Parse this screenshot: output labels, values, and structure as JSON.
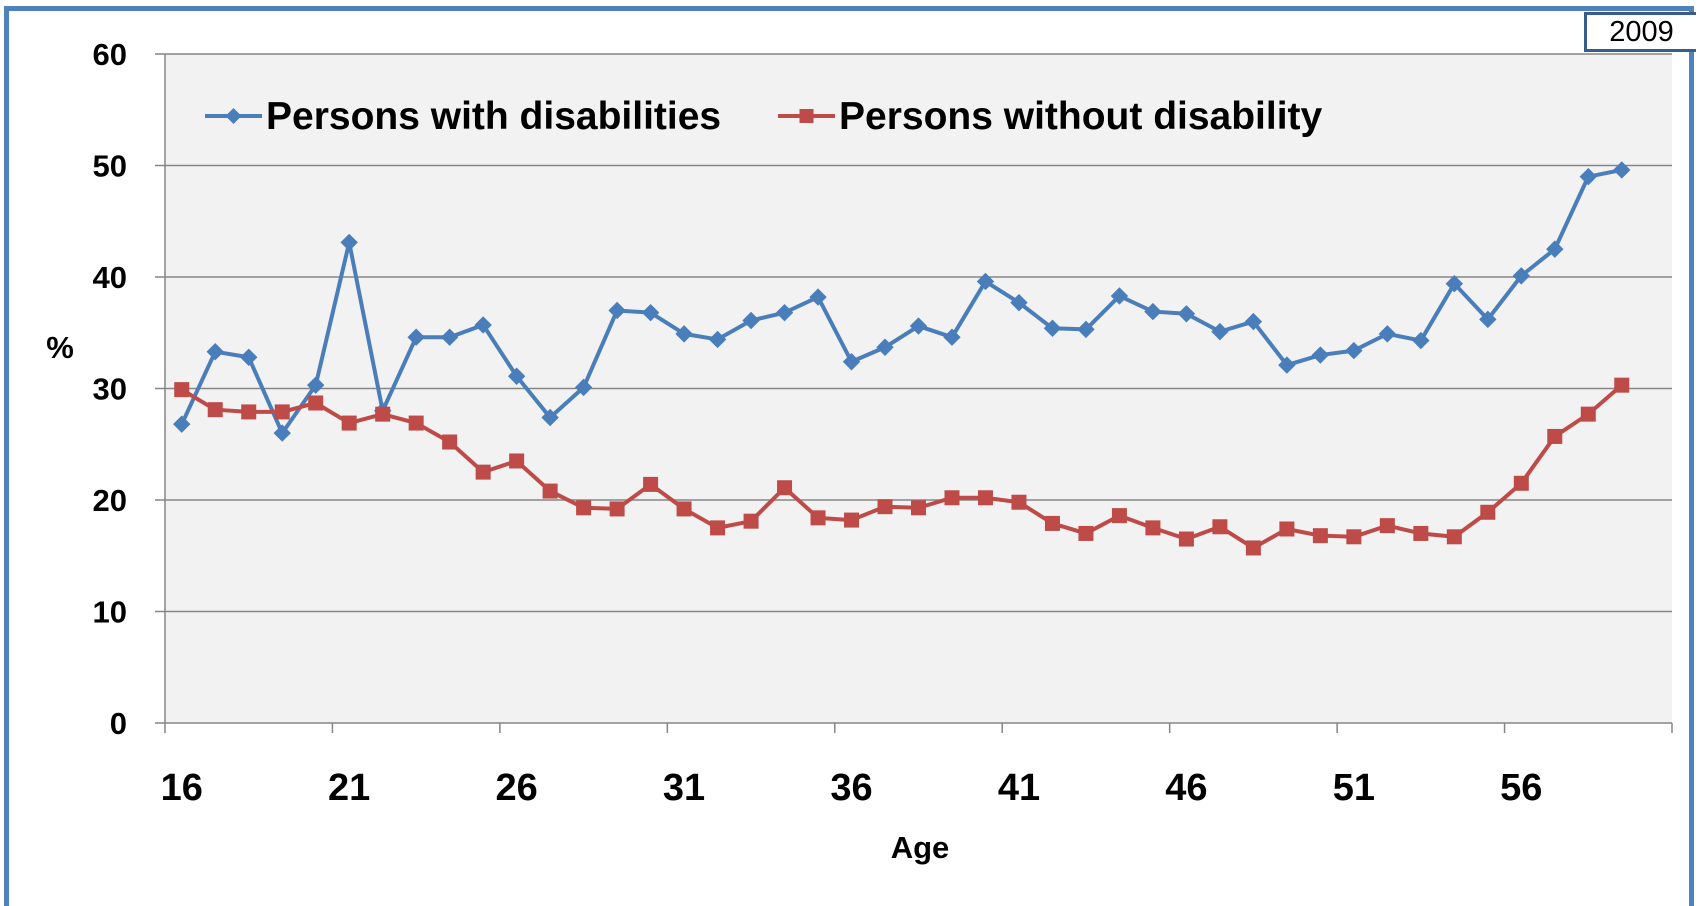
{
  "badge": {
    "year": "2009"
  },
  "chart_data": {
    "type": "line",
    "xlabel": "Age",
    "ylabel": "%",
    "ylim": [
      0,
      60
    ],
    "yticks": [
      0,
      10,
      20,
      30,
      40,
      50,
      60
    ],
    "xticks": [
      16,
      21,
      26,
      31,
      36,
      41,
      46,
      51,
      56
    ],
    "grid": "horizontal",
    "legend_position": "top-left",
    "x": [
      16,
      17,
      18,
      19,
      20,
      21,
      22,
      23,
      24,
      25,
      26,
      27,
      28,
      29,
      30,
      31,
      32,
      33,
      34,
      35,
      36,
      37,
      38,
      39,
      40,
      41,
      42,
      43,
      44,
      45,
      46,
      47,
      48,
      49,
      50,
      51,
      52,
      53,
      54,
      55,
      56,
      57,
      58,
      59,
      60
    ],
    "series": [
      {
        "name": "Persons with disabilities",
        "color": "#4a7ebb",
        "marker": "diamond",
        "values": [
          26.8,
          33.3,
          32.8,
          26.0,
          30.3,
          43.1,
          28.0,
          34.6,
          34.6,
          35.7,
          31.1,
          27.4,
          30.1,
          37.0,
          36.8,
          34.9,
          34.4,
          36.1,
          36.8,
          38.2,
          32.4,
          33.7,
          35.6,
          34.6,
          39.6,
          37.7,
          35.4,
          35.3,
          38.3,
          36.9,
          36.7,
          35.1,
          36.0,
          32.1,
          33.0,
          33.4,
          34.9,
          34.3,
          39.4,
          36.2,
          40.1,
          42.5,
          49.0,
          49.6,
          null
        ]
      },
      {
        "name": "Persons without disability",
        "color": "#be4b48",
        "marker": "square",
        "values": [
          29.9,
          28.1,
          27.9,
          27.9,
          28.7,
          26.9,
          27.7,
          26.9,
          25.2,
          22.5,
          23.5,
          20.8,
          19.3,
          19.2,
          21.4,
          19.2,
          17.5,
          18.1,
          21.1,
          18.4,
          18.2,
          19.4,
          19.3,
          20.2,
          20.2,
          19.8,
          17.9,
          17.0,
          18.6,
          17.5,
          16.5,
          17.6,
          15.7,
          17.4,
          16.8,
          16.7,
          17.7,
          17.0,
          16.7,
          18.9,
          21.5,
          25.7,
          27.7,
          30.3,
          null
        ]
      }
    ]
  }
}
